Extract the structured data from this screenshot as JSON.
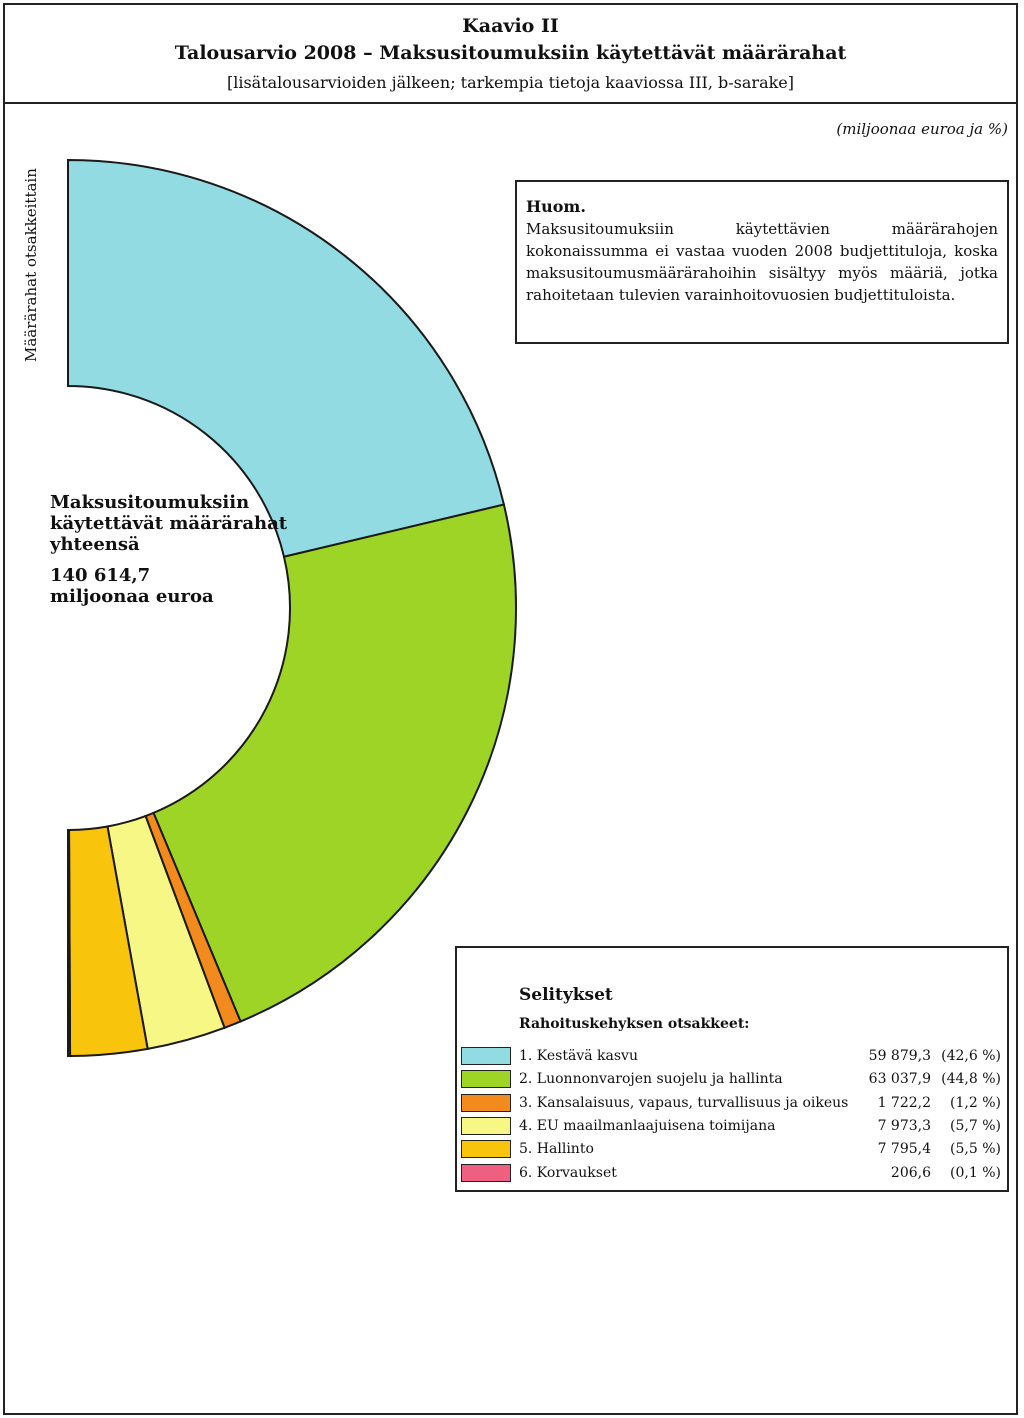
{
  "header": {
    "title": "Kaavio II",
    "subtitle": "Talousarvio 2008 – Maksusitoumuksiin käytettävät määrärahat",
    "bracket_note": "[lisätalousarvioiden jälkeen; tarkempia tietoja kaaviossa III, b-sarake]"
  },
  "units_label": "(miljoonaa euroa ja %)",
  "side_label": "Määrärahat otsakkeittain",
  "note": {
    "title": "Huom.",
    "text": "Maksusitoumuksiin käytettävien määrärahojen kokonaissumma ei vastaa vuoden 2008 budjettituloja, koska maksusitoumusmäärärahoihin sisältyy myös määriä, jotka rahoitetaan tulevien varainhoitovuosien budjettituloista."
  },
  "center": {
    "label_line1": "Maksusitoumuksiin",
    "label_line2": "käytettävät määrärahat",
    "label_line3": "yhteensä",
    "total_line1": "140 614,7",
    "total_line2": "miljoonaa euroa"
  },
  "legend": {
    "title": "Selitykset",
    "subtitle": "Rahoituskehyksen otsakkeet:"
  },
  "chart_data": {
    "type": "pie",
    "style": "half-donut",
    "title": "Talousarvio 2008 – Maksusitoumuksiin käytettävät määrärahat",
    "total": 140614.7,
    "unit": "miljoonaa euroa",
    "categories": [
      "1. Kestävä kasvu",
      "2. Luonnonvarojen suojelu ja hallinta",
      "3. Kansalaisuus, vapaus, turvallisuus ja oikeus",
      "4. EU maailmanlaajuisena toimijana",
      "5. Hallinto",
      "6. Korvaukset"
    ],
    "values": [
      59879.3,
      63037.9,
      1722.2,
      7973.3,
      7795.4,
      206.6
    ],
    "value_labels": [
      "59 879,3",
      "63 037,9",
      "1 722,2",
      "7 973,3",
      "7 795,4",
      "206,6"
    ],
    "percent_labels": [
      "(42,6 %)",
      "(44,8 %)",
      "(1,2 %)",
      "(5,7 %)",
      "(5,5 %)",
      "(0,1 %)"
    ],
    "colors": [
      "#92dbe2",
      "#9dd426",
      "#f28a1e",
      "#f7f785",
      "#f9c40c",
      "#ee5f80"
    ],
    "legend_position": "bottom-right"
  }
}
